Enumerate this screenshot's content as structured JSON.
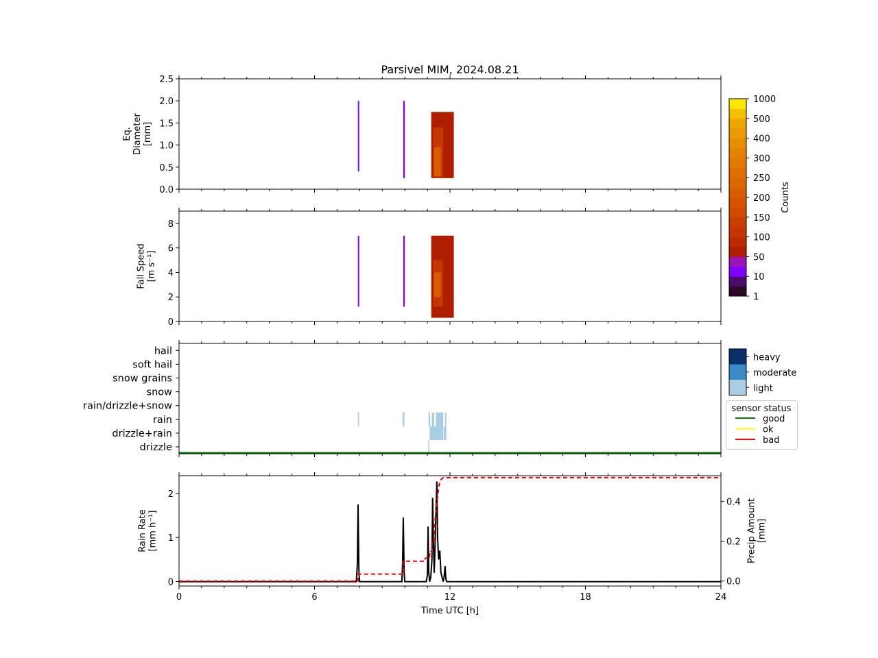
{
  "chart_data": {
    "title": "Parsivel MIM, 2024.08.21",
    "xlabel": "Time UTC [h]",
    "x_ticks": [
      "0",
      "6",
      "12",
      "18",
      "24"
    ],
    "xlim": [
      0,
      24
    ],
    "panels": [
      {
        "type": "heatmap",
        "ylabel_lines": [
          "Eq.",
          "Diameter",
          "[mm]"
        ],
        "ylim": [
          0,
          2.5
        ],
        "y_ticks": [
          "0.0",
          "0.5",
          "1.0",
          "1.5",
          "2.0",
          "2.5"
        ],
        "clusters": [
          {
            "t": 7.92,
            "dt": 0.06,
            "bottom": 0.4,
            "top": 2.0,
            "value": 10
          },
          {
            "t": 9.93,
            "dt": 0.07,
            "bottom": 0.25,
            "top": 2.0,
            "value": 10
          },
          {
            "t": 11.17,
            "dt": 1.0,
            "bottom": 0.25,
            "top": 1.75,
            "value": 50
          },
          {
            "t": 11.25,
            "dt": 0.45,
            "bottom": 0.25,
            "top": 1.4,
            "value": 100
          },
          {
            "t": 11.3,
            "dt": 0.3,
            "bottom": 0.3,
            "top": 0.95,
            "value": 200
          }
        ]
      },
      {
        "type": "heatmap",
        "ylabel_lines": [
          "Fall Speed",
          "[m s⁻¹]"
        ],
        "ylim": [
          0,
          9
        ],
        "y_ticks": [
          "0",
          "2",
          "4",
          "6",
          "8"
        ],
        "clusters": [
          {
            "t": 7.92,
            "dt": 0.06,
            "bottom": 1.2,
            "top": 7.0,
            "value": 10
          },
          {
            "t": 9.93,
            "dt": 0.07,
            "bottom": 1.2,
            "top": 7.0,
            "value": 10
          },
          {
            "t": 11.17,
            "dt": 1.0,
            "bottom": 0.3,
            "top": 7.0,
            "value": 50
          },
          {
            "t": 11.25,
            "dt": 0.45,
            "bottom": 1.2,
            "top": 5.0,
            "value": 100
          },
          {
            "t": 11.3,
            "dt": 0.3,
            "bottom": 2.0,
            "top": 4.0,
            "value": 200
          }
        ]
      },
      {
        "type": "heatmap",
        "categories": [
          "drizzle",
          "drizzle+rain",
          "rain",
          "rain/drizzle+snow",
          "snow",
          "snow grains",
          "soft hail",
          "hail"
        ],
        "events": [
          {
            "t": 7.92,
            "dt": 0.05,
            "category": "rain",
            "intensity": "light"
          },
          {
            "t": 9.9,
            "dt": 0.08,
            "category": "rain",
            "intensity": "light"
          },
          {
            "t": 11.05,
            "dt": 0.07,
            "category": "rain",
            "intensity": "light"
          },
          {
            "t": 11.2,
            "dt": 0.1,
            "category": "rain",
            "intensity": "light"
          },
          {
            "t": 11.38,
            "dt": 0.32,
            "category": "rain",
            "intensity": "light"
          },
          {
            "t": 11.78,
            "dt": 0.06,
            "category": "rain",
            "intensity": "light"
          },
          {
            "t": 11.1,
            "dt": 0.6,
            "category": "drizzle+rain",
            "intensity": "light"
          },
          {
            "t": 11.72,
            "dt": 0.12,
            "category": "drizzle+rain",
            "intensity": "light"
          },
          {
            "t": 11.04,
            "dt": 0.05,
            "category": "drizzle",
            "intensity": "light"
          }
        ],
        "status_series": [
          {
            "name": "good",
            "x": [
              0,
              24
            ],
            "y": [
              1,
              1
            ]
          }
        ]
      },
      {
        "type": "line",
        "ylabel_lines": [
          "Rain Rate",
          "[mm h⁻¹]"
        ],
        "ylim": [
          -0.1,
          2.4
        ],
        "y_ticks": [
          "0",
          "1",
          "2"
        ],
        "y2label_lines": [
          "Precip Amount",
          "[mm]"
        ],
        "y2lim": [
          -0.025,
          0.53
        ],
        "y2_ticks": [
          "0.0",
          "0.2",
          "0.4"
        ],
        "series": [
          {
            "axis": "left",
            "x": [
              0,
              7.85,
              7.9,
              7.93,
              7.97,
              8.0,
              9.87,
              9.9,
              9.93,
              9.97,
              10.0,
              10.95,
              11.0,
              11.03,
              11.06,
              11.1,
              11.15,
              11.2,
              11.23,
              11.27,
              11.3,
              11.33,
              11.38,
              11.42,
              11.45,
              11.5,
              11.55,
              11.6,
              11.65,
              11.7,
              11.74,
              11.78,
              11.82,
              11.85,
              24
            ],
            "y": [
              0,
              0,
              0.4,
              1.75,
              0.2,
              0,
              0,
              0.4,
              1.45,
              0.2,
              0,
              0,
              0.15,
              1.25,
              0.2,
              0,
              0.1,
              0.5,
              1.9,
              0.8,
              0.2,
              0.6,
              1.6,
              2.27,
              1.0,
              0.5,
              0.7,
              0.2,
              0.1,
              0,
              0.1,
              0.35,
              0.05,
              0,
              0
            ]
          },
          {
            "axis": "right",
            "x": [
              0,
              7.93,
              7.93,
              9.93,
              9.93,
              10.9,
              10.9,
              11.1,
              11.1,
              11.2,
              11.2,
              11.3,
              11.3,
              11.35,
              11.4,
              11.45,
              11.5,
              11.55,
              11.6,
              11.7,
              11.85,
              24
            ],
            "y": [
              0,
              0,
              0.035,
              0.035,
              0.1,
              0.1,
              0.115,
              0.115,
              0.15,
              0.15,
              0.2,
              0.2,
              0.25,
              0.32,
              0.38,
              0.42,
              0.47,
              0.5,
              0.51,
              0.52,
              0.52,
              0.52
            ]
          }
        ]
      }
    ],
    "colorbar": {
      "label": "Counts",
      "tick_labels": [
        "1",
        "10",
        "50",
        "100",
        "150",
        "200",
        "250",
        "300",
        "400",
        "500",
        "1000"
      ],
      "levels": [
        1,
        5,
        10,
        20,
        50,
        70,
        100,
        125,
        150,
        175,
        200,
        225,
        250,
        275,
        300,
        350,
        400,
        450,
        500,
        750,
        1000
      ],
      "colors": [
        "#2a0a26",
        "#4b0c6b",
        "#8000ff",
        "#9a14b8",
        "#b01e00",
        "#be2a00",
        "#c43500",
        "#ca3f00",
        "#d04b00",
        "#d45400",
        "#d85e00",
        "#dc6800",
        "#df7000",
        "#e27a00",
        "#e58300",
        "#e88f00",
        "#eb9a00",
        "#eea600",
        "#f3c000",
        "#ffe600"
      ]
    },
    "intensity_legend": {
      "labels": [
        "heavy",
        "moderate",
        "light"
      ],
      "colors": [
        "#08306b",
        "#3a8cc6",
        "#a9cde3"
      ]
    },
    "status_legend": {
      "title": "sensor status",
      "labels": [
        "good",
        "ok",
        "bad"
      ],
      "colors": [
        "#008000",
        "#ffff00",
        "#ff0000"
      ]
    },
    "line_colors": {
      "rain_rate": "#000000",
      "precip_amount": "#ff0000"
    }
  }
}
